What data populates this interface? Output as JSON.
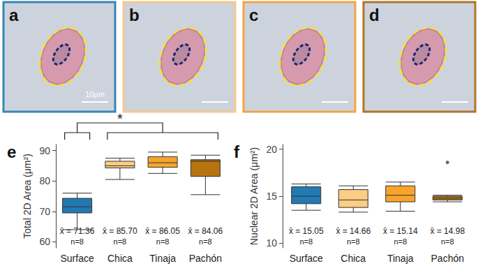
{
  "images": {
    "panels": [
      {
        "label": "a",
        "color": "#3a85b5"
      },
      {
        "label": "b",
        "color": "#f5c98c"
      },
      {
        "label": "c",
        "color": "#f2a447"
      },
      {
        "label": "d",
        "color": "#b07428"
      }
    ],
    "scale_bar": "10μm"
  },
  "chart_data": [
    {
      "type": "boxplot",
      "panel_label": "e",
      "y_label": "Total 2D Area (μm²)",
      "categories": [
        "Surface",
        "Chica",
        "Tinaja",
        "Pachón"
      ],
      "colors": [
        "#2379b2",
        "#fdcc85",
        "#f8a42c",
        "#b7730f"
      ],
      "stats": [
        [
          64,
          69.5,
          71.5,
          74.3,
          76
        ],
        [
          80.5,
          84.3,
          85,
          86.5,
          87.5
        ],
        [
          82.5,
          84.5,
          86,
          88,
          89.5
        ],
        [
          75.5,
          81.5,
          86.5,
          87,
          88.5
        ]
      ],
      "mean_labels": [
        "x̄ = 71.36",
        "x̄ = 85.70",
        "x̄ = 86.05",
        "x̄ = 84.06"
      ],
      "n_labels": [
        "n=8",
        "n=8",
        "n=8",
        "n=8"
      ],
      "ylim": [
        58,
        92
      ],
      "yticks": [
        60,
        70,
        80,
        90
      ],
      "grid": false,
      "bracket": {
        "text": "*",
        "left": [
          "Surface"
        ],
        "right": [
          "Chica",
          "Tinaja",
          "Pachón"
        ]
      }
    },
    {
      "type": "boxplot",
      "panel_label": "f",
      "y_label": "Nuclear 2D Area (μm²)",
      "categories": [
        "Surface",
        "Chica",
        "Tinaja",
        "Pachón"
      ],
      "colors": [
        "#2379b2",
        "#fdcc85",
        "#f8a42c",
        "#b7730f"
      ],
      "stats": [
        [
          13.5,
          14.2,
          15,
          16,
          16.3
        ],
        [
          13.3,
          13.8,
          14.6,
          15.7,
          16.1
        ],
        [
          13.4,
          14.4,
          15.1,
          16.1,
          16.5
        ],
        [
          14.4,
          14.6,
          14.8,
          15.0,
          15.1
        ]
      ],
      "outliers": [
        [],
        [],
        [],
        [
          18.6
        ]
      ],
      "mean_labels": [
        "x̄ = 15.05",
        "x̄ = 14.66",
        "x̄ = 15.14",
        "x̄ = 14.98"
      ],
      "n_labels": [
        "n=8",
        "n=8",
        "n=8",
        "n=8"
      ],
      "ylim": [
        9.5,
        20.5
      ],
      "yticks": [
        10,
        15,
        20
      ],
      "grid": false
    }
  ]
}
